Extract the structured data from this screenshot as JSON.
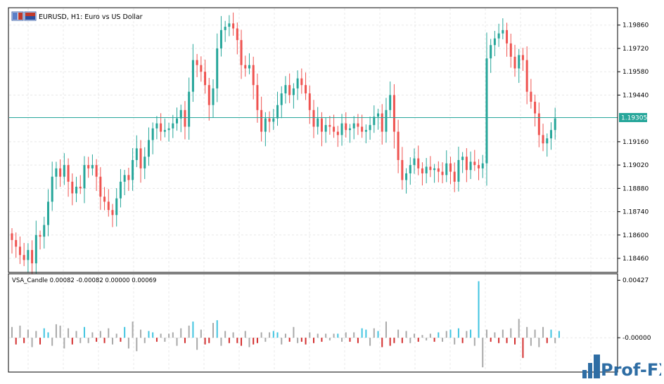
{
  "header": {
    "symbol_line": "EURUSD, H1:  Euro vs US Dollar"
  },
  "indicator": {
    "label": "VSA_Candle 0.00082 -0.00082 0.00000 0.00069"
  },
  "colors": {
    "bull": "#26a69a",
    "bear": "#ef5350",
    "price_line": "#26a69a",
    "price_tag_bg": "#26a69a",
    "vol_gray": "#a9a9a9",
    "vol_blue": "#40c4e0",
    "vol_red": "#d32f2f",
    "grid": "#e8e8e8",
    "frame": "#000000"
  },
  "logo": {
    "text": "Prof-FX"
  },
  "chart_data": [
    {
      "type": "candlestick",
      "symbol": "EURUSD",
      "timeframe": "H1",
      "ylim": [
        1.1838,
        1.1996
      ],
      "yticks": [
        1.1986,
        1.1972,
        1.1958,
        1.1944,
        1.1916,
        1.1902,
        1.1888,
        1.1874,
        1.186,
        1.1846
      ],
      "ytick_labels": [
        "1.19860",
        "1.19720",
        "1.19580",
        "1.19440",
        "1.19160",
        "1.19020",
        "1.18880",
        "1.18740",
        "1.18600",
        "1.18460"
      ],
      "current_price": 1.19305,
      "current_price_label": "1.19305",
      "series": [
        1.1857,
        1.1853,
        1.1848,
        1.1845,
        1.1851,
        1.1843,
        1.186,
        1.1859,
        1.1866,
        1.188,
        1.1895,
        1.19,
        1.1895,
        1.1902,
        1.1892,
        1.1885,
        1.1889,
        1.1888,
        1.1902,
        1.19,
        1.1902,
        1.1895,
        1.1883,
        1.188,
        1.1875,
        1.1872,
        1.1882,
        1.1892,
        1.1896,
        1.1893,
        1.1905,
        1.1912,
        1.19,
        1.1907,
        1.1917,
        1.1924,
        1.1927,
        1.1922,
        1.1923,
        1.1924,
        1.1927,
        1.193,
        1.1935,
        1.1925,
        1.1946,
        1.1965,
        1.1962,
        1.1958,
        1.195,
        1.1938,
        1.1948,
        1.1972,
        1.1983,
        1.1985,
        1.1987,
        1.1984,
        1.1977,
        1.1962,
        1.196,
        1.1962,
        1.195,
        1.1935,
        1.1922,
        1.193,
        1.1928,
        1.193,
        1.1938,
        1.1945,
        1.195,
        1.1944,
        1.1948,
        1.1954,
        1.195,
        1.1945,
        1.1935,
        1.1925,
        1.193,
        1.1922,
        1.1926,
        1.1925,
        1.1922,
        1.192,
        1.1927,
        1.1923,
        1.1924,
        1.1927,
        1.1925,
        1.1922,
        1.1923,
        1.1926,
        1.1931,
        1.1933,
        1.1922,
        1.1935,
        1.1944,
        1.1922,
        1.1905,
        1.1893,
        1.1897,
        1.1902,
        1.1906,
        1.19,
        1.1897,
        1.1901,
        1.1899,
        1.19,
        1.1898,
        1.1896,
        1.1903,
        1.1898,
        1.1892,
        1.1905,
        1.1907,
        1.1899,
        1.1904,
        1.1902,
        1.19,
        1.1903,
        1.1966,
        1.1974,
        1.1978,
        1.1981,
        1.1983,
        1.1975,
        1.1967,
        1.196,
        1.1968,
        1.1965,
        1.1946,
        1.194,
        1.1933,
        1.192,
        1.1915,
        1.1918,
        1.1923,
        1.193
      ]
    },
    {
      "type": "bar",
      "name": "VSA_Candle",
      "ylim": [
        -0.0025,
        0.0047
      ],
      "yticks": [
        0.00427,
        0.0
      ],
      "ytick_labels": [
        "0.00427",
        "-0.00000"
      ],
      "values": [
        {
          "v": 0.0008,
          "c": "gray"
        },
        {
          "v": -0.0005,
          "c": "red"
        },
        {
          "v": 0.0009,
          "c": "gray"
        },
        {
          "v": -0.0004,
          "c": "red"
        },
        {
          "v": 0.0006,
          "c": "gray"
        },
        {
          "v": -0.0007,
          "c": "gray"
        },
        {
          "v": 0.0005,
          "c": "gray"
        },
        {
          "v": -0.0005,
          "c": "red"
        },
        {
          "v": 0.0007,
          "c": "blue"
        },
        {
          "v": 0.0004,
          "c": "blue"
        },
        {
          "v": -0.0006,
          "c": "gray"
        },
        {
          "v": 0.001,
          "c": "gray"
        },
        {
          "v": 0.0009,
          "c": "gray"
        },
        {
          "v": -0.0008,
          "c": "gray"
        },
        {
          "v": 0.0007,
          "c": "gray"
        },
        {
          "v": -0.0005,
          "c": "red"
        },
        {
          "v": 0.0005,
          "c": "gray"
        },
        {
          "v": -0.0004,
          "c": "gray"
        },
        {
          "v": 0.0008,
          "c": "blue"
        },
        {
          "v": -0.0004,
          "c": "gray"
        },
        {
          "v": 0.0004,
          "c": "gray"
        },
        {
          "v": -0.0003,
          "c": "red"
        },
        {
          "v": 0.0005,
          "c": "gray"
        },
        {
          "v": -0.0004,
          "c": "red"
        },
        {
          "v": 0.0007,
          "c": "gray"
        },
        {
          "v": -0.0005,
          "c": "gray"
        },
        {
          "v": 0.0003,
          "c": "gray"
        },
        {
          "v": -0.0003,
          "c": "red"
        },
        {
          "v": 0.0008,
          "c": "blue"
        },
        {
          "v": -0.0008,
          "c": "gray"
        },
        {
          "v": 0.0012,
          "c": "gray"
        },
        {
          "v": -0.001,
          "c": "gray"
        },
        {
          "v": 0.0006,
          "c": "gray"
        },
        {
          "v": -0.0004,
          "c": "gray"
        },
        {
          "v": 0.0005,
          "c": "blue"
        },
        {
          "v": 0.0004,
          "c": "blue"
        },
        {
          "v": -0.0003,
          "c": "red"
        },
        {
          "v": 0.0003,
          "c": "gray"
        },
        {
          "v": -0.0003,
          "c": "gray"
        },
        {
          "v": 0.0003,
          "c": "gray"
        },
        {
          "v": 0.0004,
          "c": "gray"
        },
        {
          "v": -0.0006,
          "c": "gray"
        },
        {
          "v": 0.0007,
          "c": "gray"
        },
        {
          "v": -0.0004,
          "c": "red"
        },
        {
          "v": 0.0009,
          "c": "gray"
        },
        {
          "v": 0.0012,
          "c": "blue"
        },
        {
          "v": -0.0009,
          "c": "gray"
        },
        {
          "v": 0.0006,
          "c": "gray"
        },
        {
          "v": -0.0005,
          "c": "red"
        },
        {
          "v": -0.0004,
          "c": "red"
        },
        {
          "v": 0.0011,
          "c": "gray"
        },
        {
          "v": 0.0013,
          "c": "blue"
        },
        {
          "v": -0.0006,
          "c": "gray"
        },
        {
          "v": 0.0005,
          "c": "gray"
        },
        {
          "v": -0.0004,
          "c": "red"
        },
        {
          "v": 0.0004,
          "c": "gray"
        },
        {
          "v": -0.0004,
          "c": "red"
        },
        {
          "v": -0.0006,
          "c": "red"
        },
        {
          "v": 0.0005,
          "c": "gray"
        },
        {
          "v": -0.0007,
          "c": "gray"
        },
        {
          "v": -0.0005,
          "c": "red"
        },
        {
          "v": -0.0004,
          "c": "red"
        },
        {
          "v": 0.0004,
          "c": "gray"
        },
        {
          "v": -0.0003,
          "c": "gray"
        },
        {
          "v": 0.0004,
          "c": "gray"
        },
        {
          "v": 0.0005,
          "c": "blue"
        },
        {
          "v": 0.0004,
          "c": "blue"
        },
        {
          "v": -0.0005,
          "c": "gray"
        },
        {
          "v": 0.0003,
          "c": "gray"
        },
        {
          "v": -0.0003,
          "c": "red"
        },
        {
          "v": 0.0008,
          "c": "gray"
        },
        {
          "v": -0.0004,
          "c": "gray"
        },
        {
          "v": -0.0003,
          "c": "red"
        },
        {
          "v": -0.0005,
          "c": "red"
        },
        {
          "v": 0.0004,
          "c": "gray"
        },
        {
          "v": -0.0004,
          "c": "red"
        },
        {
          "v": 0.0003,
          "c": "gray"
        },
        {
          "v": -0.0003,
          "c": "red"
        },
        {
          "v": 0.0003,
          "c": "gray"
        },
        {
          "v": -0.0002,
          "c": "gray"
        },
        {
          "v": 0.0003,
          "c": "gray"
        },
        {
          "v": 0.0003,
          "c": "blue"
        },
        {
          "v": -0.0003,
          "c": "gray"
        },
        {
          "v": 0.0004,
          "c": "gray"
        },
        {
          "v": -0.0003,
          "c": "red"
        },
        {
          "v": 0.0004,
          "c": "gray"
        },
        {
          "v": -0.0004,
          "c": "red"
        },
        {
          "v": 0.0007,
          "c": "blue"
        },
        {
          "v": 0.0006,
          "c": "blue"
        },
        {
          "v": -0.0006,
          "c": "gray"
        },
        {
          "v": 0.0007,
          "c": "gray"
        },
        {
          "v": 0.0005,
          "c": "blue"
        },
        {
          "v": -0.0007,
          "c": "red"
        },
        {
          "v": 0.0012,
          "c": "gray"
        },
        {
          "v": -0.0006,
          "c": "red"
        },
        {
          "v": -0.0004,
          "c": "red"
        },
        {
          "v": 0.0006,
          "c": "gray"
        },
        {
          "v": -0.0004,
          "c": "red"
        },
        {
          "v": 0.0005,
          "c": "gray"
        },
        {
          "v": -0.0004,
          "c": "gray"
        },
        {
          "v": 0.0003,
          "c": "gray"
        },
        {
          "v": -0.0003,
          "c": "red"
        },
        {
          "v": 0.0002,
          "c": "gray"
        },
        {
          "v": -0.0002,
          "c": "gray"
        },
        {
          "v": 0.0003,
          "c": "gray"
        },
        {
          "v": -0.0003,
          "c": "red"
        },
        {
          "v": 0.0004,
          "c": "blue"
        },
        {
          "v": -0.0003,
          "c": "gray"
        },
        {
          "v": 0.0005,
          "c": "gray"
        },
        {
          "v": 0.0006,
          "c": "blue"
        },
        {
          "v": -0.0005,
          "c": "gray"
        },
        {
          "v": 0.0007,
          "c": "blue"
        },
        {
          "v": -0.0004,
          "c": "red"
        },
        {
          "v": 0.0005,
          "c": "gray"
        },
        {
          "v": 0.0006,
          "c": "blue"
        },
        {
          "v": -0.0006,
          "c": "gray"
        },
        {
          "v": 0.0042,
          "c": "blue"
        },
        {
          "v": -0.0022,
          "c": "gray"
        },
        {
          "v": 0.0006,
          "c": "gray"
        },
        {
          "v": -0.0003,
          "c": "red"
        },
        {
          "v": 0.0004,
          "c": "gray"
        },
        {
          "v": -0.0004,
          "c": "red"
        },
        {
          "v": 0.0006,
          "c": "gray"
        },
        {
          "v": -0.0004,
          "c": "red"
        },
        {
          "v": 0.0007,
          "c": "gray"
        },
        {
          "v": -0.0005,
          "c": "red"
        },
        {
          "v": 0.0014,
          "c": "gray"
        },
        {
          "v": -0.0015,
          "c": "red"
        },
        {
          "v": 0.0008,
          "c": "gray"
        },
        {
          "v": -0.0006,
          "c": "gray"
        },
        {
          "v": 0.0006,
          "c": "gray"
        },
        {
          "v": -0.0007,
          "c": "gray"
        },
        {
          "v": 0.0008,
          "c": "gray"
        },
        {
          "v": -0.0004,
          "c": "red"
        },
        {
          "v": 0.0006,
          "c": "blue"
        },
        {
          "v": -0.0004,
          "c": "gray"
        },
        {
          "v": 0.0005,
          "c": "blue"
        }
      ]
    }
  ]
}
